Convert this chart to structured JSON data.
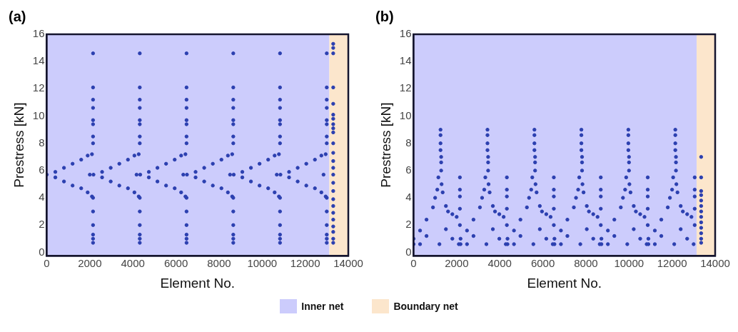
{
  "chart_data": [
    {
      "type": "scatter",
      "title": "(a)",
      "xlabel": "Element No.",
      "ylabel": "Prestress [kN]",
      "xlim": [
        0,
        14000
      ],
      "ylim": [
        -0.25,
        16
      ],
      "xticks": [
        0,
        2000,
        4000,
        6000,
        8000,
        10000,
        12000,
        14000
      ],
      "yticks": [
        0,
        2,
        4,
        6,
        8,
        10,
        12,
        14,
        16
      ],
      "grid": false,
      "legend": "bottom",
      "marker": "circle",
      "bands": [
        {
          "axis": "x",
          "from": 0,
          "to": 13120,
          "label": "Inner net",
          "color": "#ccccfc"
        },
        {
          "axis": "x",
          "from": 13120,
          "to": 14000,
          "label": "Boundary net",
          "color": "#fce6cc"
        }
      ],
      "series": [
        {
          "color": "#2c40b0",
          "x": [
            0,
            400,
            400,
            800,
            800,
            1200,
            1200,
            1600,
            1600,
            1900,
            1900,
            2000,
            2100,
            2100,
            2150,
            2150,
            2150,
            2150,
            2150,
            2150,
            2150,
            2150,
            2150,
            2150,
            2150,
            2150,
            2150,
            2150,
            2170,
            2570,
            2570,
            2970,
            2970,
            3370,
            3370,
            3770,
            3770,
            4070,
            4070,
            4170,
            4270,
            4270,
            4320,
            4320,
            4320,
            4320,
            4320,
            4320,
            4320,
            4320,
            4320,
            4320,
            4320,
            4320,
            4320,
            4320,
            4340,
            4740,
            4740,
            5140,
            5140,
            5540,
            5540,
            5940,
            5940,
            6240,
            6240,
            6340,
            6440,
            6440,
            6490,
            6490,
            6490,
            6490,
            6490,
            6490,
            6490,
            6490,
            6490,
            6490,
            6490,
            6490,
            6490,
            6490,
            6510,
            6910,
            6910,
            7310,
            7310,
            7710,
            7710,
            8110,
            8110,
            8410,
            8410,
            8510,
            8610,
            8610,
            8660,
            8660,
            8660,
            8660,
            8660,
            8660,
            8660,
            8660,
            8660,
            8660,
            8660,
            8660,
            8660,
            8660,
            8680,
            9080,
            9080,
            9480,
            9480,
            9880,
            9880,
            10280,
            10280,
            10580,
            10580,
            10680,
            10780,
            10780,
            10830,
            10830,
            10830,
            10830,
            10830,
            10830,
            10830,
            10830,
            10830,
            10830,
            10830,
            10830,
            10830,
            10830,
            10850,
            11250,
            11250,
            11650,
            11650,
            12050,
            12050,
            12450,
            12450,
            12750,
            12750,
            12850,
            12950,
            12950,
            13000,
            13000,
            13000,
            13000,
            13000,
            13000,
            13000,
            13000,
            13000,
            13000,
            13000,
            13000,
            13000,
            13000,
            13300,
            13300,
            13300,
            13300,
            13300,
            13300,
            13300,
            13300,
            13300,
            13300,
            13300,
            13300,
            13300,
            13300,
            13300,
            13300,
            13300,
            13300,
            13300,
            13300,
            13300,
            13300,
            13300,
            13300,
            13300
          ],
          "values": [
            5.7,
            5.9,
            5.5,
            6.2,
            5.2,
            6.5,
            4.9,
            6.8,
            4.7,
            7.1,
            4.4,
            5.7,
            7.2,
            4.1,
            0.7,
            1.0,
            1.3,
            2.0,
            3.0,
            4.0,
            8.0,
            8.5,
            9.4,
            9.7,
            10.6,
            11.2,
            12.1,
            14.6,
            5.7,
            5.9,
            5.5,
            6.2,
            5.2,
            6.5,
            4.9,
            6.8,
            4.7,
            7.1,
            4.4,
            5.7,
            7.2,
            4.1,
            0.7,
            1.0,
            1.3,
            2.0,
            3.0,
            4.0,
            8.0,
            8.5,
            9.4,
            9.7,
            10.6,
            11.2,
            12.1,
            14.6,
            5.7,
            5.9,
            5.5,
            6.2,
            5.2,
            6.5,
            4.9,
            6.8,
            4.7,
            7.1,
            4.4,
            5.7,
            7.2,
            4.1,
            0.7,
            1.0,
            1.3,
            2.0,
            3.0,
            4.0,
            8.0,
            8.5,
            9.4,
            9.7,
            10.6,
            11.2,
            12.1,
            14.6,
            5.7,
            5.9,
            5.5,
            6.2,
            5.2,
            6.5,
            4.9,
            6.8,
            4.7,
            7.1,
            4.4,
            5.7,
            7.2,
            4.1,
            0.7,
            1.0,
            1.3,
            2.0,
            3.0,
            4.0,
            8.0,
            8.5,
            9.4,
            9.7,
            10.6,
            11.2,
            12.1,
            14.6,
            5.7,
            5.9,
            5.5,
            6.2,
            5.2,
            6.5,
            4.9,
            6.8,
            4.7,
            7.1,
            4.4,
            5.7,
            7.2,
            4.1,
            0.7,
            1.0,
            1.3,
            2.0,
            3.0,
            4.0,
            8.0,
            8.5,
            9.4,
            9.7,
            10.6,
            11.2,
            12.1,
            14.6,
            5.7,
            5.9,
            5.5,
            6.2,
            5.2,
            6.5,
            4.9,
            6.8,
            4.7,
            7.1,
            4.4,
            5.7,
            7.2,
            4.1,
            0.7,
            1.0,
            1.3,
            2.0,
            3.0,
            4.0,
            8.0,
            8.5,
            9.4,
            9.7,
            10.6,
            11.2,
            12.1,
            14.6,
            15.3,
            15.0,
            14.6,
            12.1,
            10.9,
            10.1,
            9.8,
            9.4,
            9.1,
            8.8,
            8.0,
            7.3,
            6.7,
            6.2,
            5.7,
            5.1,
            4.5,
            3.9,
            3.4,
            2.9,
            2.4,
            1.9,
            1.5,
            1.0,
            0.7
          ]
        }
      ]
    },
    {
      "type": "scatter",
      "title": "(b)",
      "xlabel": "Element No.",
      "ylabel": "Prestress [kN]",
      "xlim": [
        0,
        14000
      ],
      "ylim": [
        -0.25,
        16
      ],
      "xticks": [
        0,
        2000,
        4000,
        6000,
        8000,
        10000,
        12000,
        14000
      ],
      "yticks": [
        0,
        2,
        4,
        6,
        8,
        10,
        12,
        14,
        16
      ],
      "grid": false,
      "legend": false,
      "marker": "circle",
      "bands": [
        {
          "axis": "x",
          "from": 0,
          "to": 13140,
          "color": "#ccccfc"
        },
        {
          "axis": "x",
          "from": 13140,
          "to": 14000,
          "color": "#fce6cc"
        }
      ],
      "series": [
        {
          "color": "#2c40b0",
          "x": [
            0,
            0,
            300,
            300,
            600,
            600,
            900,
            1000,
            1100,
            1150,
            1250,
            1250,
            1250,
            1250,
            1280,
            1280,
            1280,
            1300,
            1350,
            1500,
            1600,
            1800,
            2000,
            1500,
            1800,
            1200,
            2100,
            2150,
            2150,
            2150,
            2150,
            2150,
            2180,
            2180,
            2480,
            2480,
            2780,
            2780,
            3080,
            3180,
            3280,
            3330,
            3430,
            3430,
            3430,
            3430,
            3460,
            3460,
            3460,
            3480,
            3530,
            3680,
            3780,
            3980,
            4180,
            3680,
            3980,
            3380,
            4280,
            4330,
            4330,
            4330,
            4330,
            4330,
            4360,
            4360,
            4660,
            4660,
            4960,
            4960,
            5260,
            5360,
            5460,
            5510,
            5610,
            5610,
            5610,
            5610,
            5640,
            5640,
            5640,
            5660,
            5710,
            5860,
            5960,
            6160,
            6360,
            5860,
            6160,
            5560,
            6460,
            6510,
            6510,
            6510,
            6510,
            6510,
            6540,
            6540,
            6840,
            6840,
            7140,
            7140,
            7440,
            7540,
            7640,
            7690,
            7790,
            7790,
            7790,
            7790,
            7820,
            7820,
            7820,
            7840,
            7890,
            8040,
            8140,
            8340,
            8540,
            8040,
            8340,
            7740,
            8640,
            8690,
            8690,
            8690,
            8690,
            8690,
            8720,
            8720,
            9020,
            9020,
            9320,
            9320,
            9620,
            9720,
            9820,
            9870,
            9970,
            9970,
            9970,
            9970,
            10000,
            10000,
            10000,
            10020,
            10070,
            10220,
            10320,
            10520,
            10720,
            10220,
            10520,
            9920,
            10820,
            10870,
            10870,
            10870,
            10870,
            10870,
            10900,
            10900,
            11200,
            11200,
            11500,
            11500,
            11800,
            11900,
            12000,
            12050,
            12150,
            12150,
            12150,
            12150,
            12180,
            12180,
            12180,
            12200,
            12250,
            12400,
            12500,
            12700,
            12900,
            12400,
            12700,
            12100,
            13000,
            13050,
            13050,
            13050,
            13050,
            13050,
            13350,
            13350,
            13350,
            13350,
            13350,
            13350,
            13350,
            13350,
            13350,
            13350,
            13350,
            13350,
            13350
          ],
          "values": [
            0.6,
            1.0,
            1.6,
            0.6,
            2.4,
            1.2,
            3.3,
            4.0,
            4.6,
            5.5,
            9.0,
            8.6,
            8.0,
            7.5,
            7.0,
            6.6,
            6.0,
            5.0,
            4.4,
            3.4,
            3.0,
            2.8,
            2.6,
            1.7,
            1.0,
            0.6,
            0.6,
            5.5,
            4.6,
            4.1,
            3.2,
            2.0,
            0.6,
            1.0,
            1.6,
            0.6,
            2.4,
            1.2,
            3.3,
            4.0,
            4.6,
            5.5,
            9.0,
            8.6,
            8.0,
            7.5,
            7.0,
            6.6,
            6.0,
            5.0,
            4.4,
            3.4,
            3.0,
            2.8,
            2.6,
            1.7,
            1.0,
            0.6,
            0.6,
            5.5,
            4.6,
            4.1,
            3.2,
            2.0,
            0.6,
            1.0,
            1.6,
            0.6,
            2.4,
            1.2,
            3.3,
            4.0,
            4.6,
            5.5,
            9.0,
            8.6,
            8.0,
            7.5,
            7.0,
            6.6,
            6.0,
            5.0,
            4.4,
            3.4,
            3.0,
            2.8,
            2.6,
            1.7,
            1.0,
            0.6,
            0.6,
            5.5,
            4.6,
            4.1,
            3.2,
            2.0,
            0.6,
            1.0,
            1.6,
            0.6,
            2.4,
            1.2,
            3.3,
            4.0,
            4.6,
            5.5,
            9.0,
            8.6,
            8.0,
            7.5,
            7.0,
            6.6,
            6.0,
            5.0,
            4.4,
            3.4,
            3.0,
            2.8,
            2.6,
            1.7,
            1.0,
            0.6,
            0.6,
            5.5,
            4.6,
            4.1,
            3.2,
            2.0,
            0.6,
            1.0,
            1.6,
            0.6,
            2.4,
            1.2,
            3.3,
            4.0,
            4.6,
            5.5,
            9.0,
            8.6,
            8.0,
            7.5,
            7.0,
            6.6,
            6.0,
            5.0,
            4.4,
            3.4,
            3.0,
            2.8,
            2.6,
            1.7,
            1.0,
            0.6,
            0.6,
            5.5,
            4.6,
            4.1,
            3.2,
            2.0,
            0.6,
            1.0,
            1.6,
            0.6,
            2.4,
            1.2,
            3.3,
            4.0,
            4.6,
            5.5,
            9.0,
            8.6,
            8.0,
            7.5,
            7.0,
            6.6,
            6.0,
            5.0,
            4.4,
            3.4,
            3.0,
            2.8,
            2.6,
            1.7,
            1.0,
            0.6,
            0.6,
            5.5,
            4.6,
            4.1,
            3.2,
            2.0,
            7.0,
            5.5,
            4.5,
            4.2,
            3.8,
            3.4,
            3.0,
            2.6,
            2.2,
            1.8,
            1.4,
            1.0,
            0.7
          ]
        }
      ]
    }
  ]
}
